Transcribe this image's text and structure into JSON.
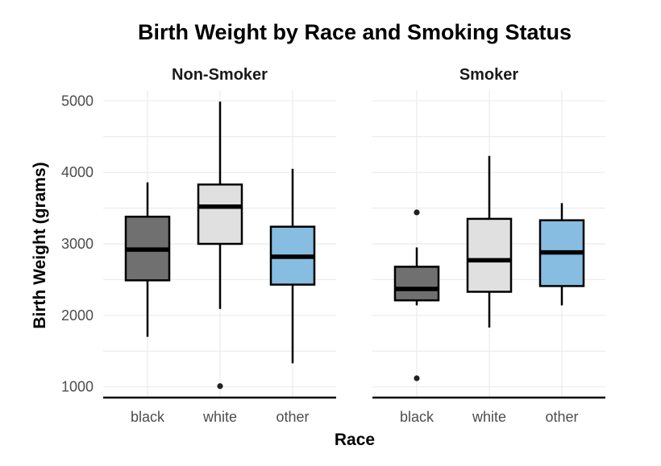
{
  "chart_data": {
    "type": "boxplot",
    "title": "Birth Weight by Race and Smoking Status",
    "xlabel": "Race",
    "ylabel": "Birth Weight (grams)",
    "ylim": [
      850,
      5150
    ],
    "yticks": [
      1000,
      2000,
      3000,
      4000,
      5000
    ],
    "categories": [
      "black",
      "white",
      "other"
    ],
    "fill_colors": {
      "black": "#707070",
      "white": "#e0e0e0",
      "other": "#86bde0"
    },
    "grid": true,
    "legend": "none",
    "panels": [
      {
        "name": "Non-Smoker",
        "boxes": [
          {
            "category": "black",
            "whisker_low": 1700,
            "q1": 2490,
            "median": 2920,
            "q3": 3380,
            "whisker_high": 3860,
            "outliers": []
          },
          {
            "category": "white",
            "whisker_low": 2090,
            "q1": 3000,
            "median": 3520,
            "q3": 3830,
            "whisker_high": 4990,
            "outliers": [
              1010
            ]
          },
          {
            "category": "other",
            "whisker_low": 1330,
            "q1": 2430,
            "median": 2820,
            "q3": 3240,
            "whisker_high": 4050,
            "outliers": []
          }
        ]
      },
      {
        "name": "Smoker",
        "boxes": [
          {
            "category": "black",
            "whisker_low": 2140,
            "q1": 2210,
            "median": 2370,
            "q3": 2680,
            "whisker_high": 2950,
            "outliers": [
              1120,
              3440
            ]
          },
          {
            "category": "white",
            "whisker_low": 1830,
            "q1": 2330,
            "median": 2770,
            "q3": 3350,
            "whisker_high": 4230,
            "outliers": []
          },
          {
            "category": "other",
            "whisker_low": 2140,
            "q1": 2410,
            "median": 2880,
            "q3": 3330,
            "whisker_high": 3570,
            "outliers": []
          }
        ]
      }
    ]
  }
}
